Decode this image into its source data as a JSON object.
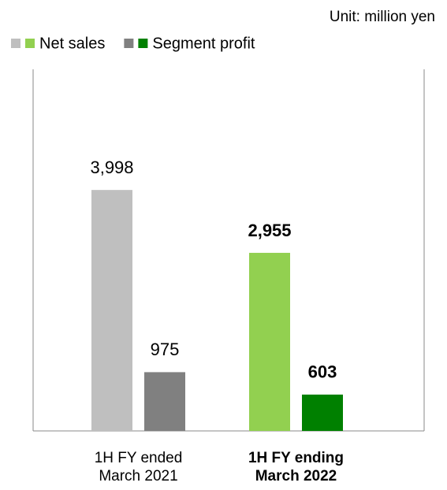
{
  "chart_data": {
    "type": "bar",
    "unit_label": "Unit: million yen",
    "categories": [
      "1H FY ended March 2021",
      "1H FY ending March 2022"
    ],
    "highlight_category": 1,
    "series": [
      {
        "name": "Net sales",
        "colors": [
          "#bfbfbf",
          "#92d050"
        ],
        "values": [
          3998,
          2955
        ],
        "value_labels": [
          "3,998",
          "2,955"
        ]
      },
      {
        "name": "Segment profit",
        "colors": [
          "#808080",
          "#008000"
        ],
        "values": [
          975,
          603
        ],
        "value_labels": [
          "975",
          "603"
        ]
      }
    ],
    "ylim": [
      0,
      6000
    ]
  }
}
